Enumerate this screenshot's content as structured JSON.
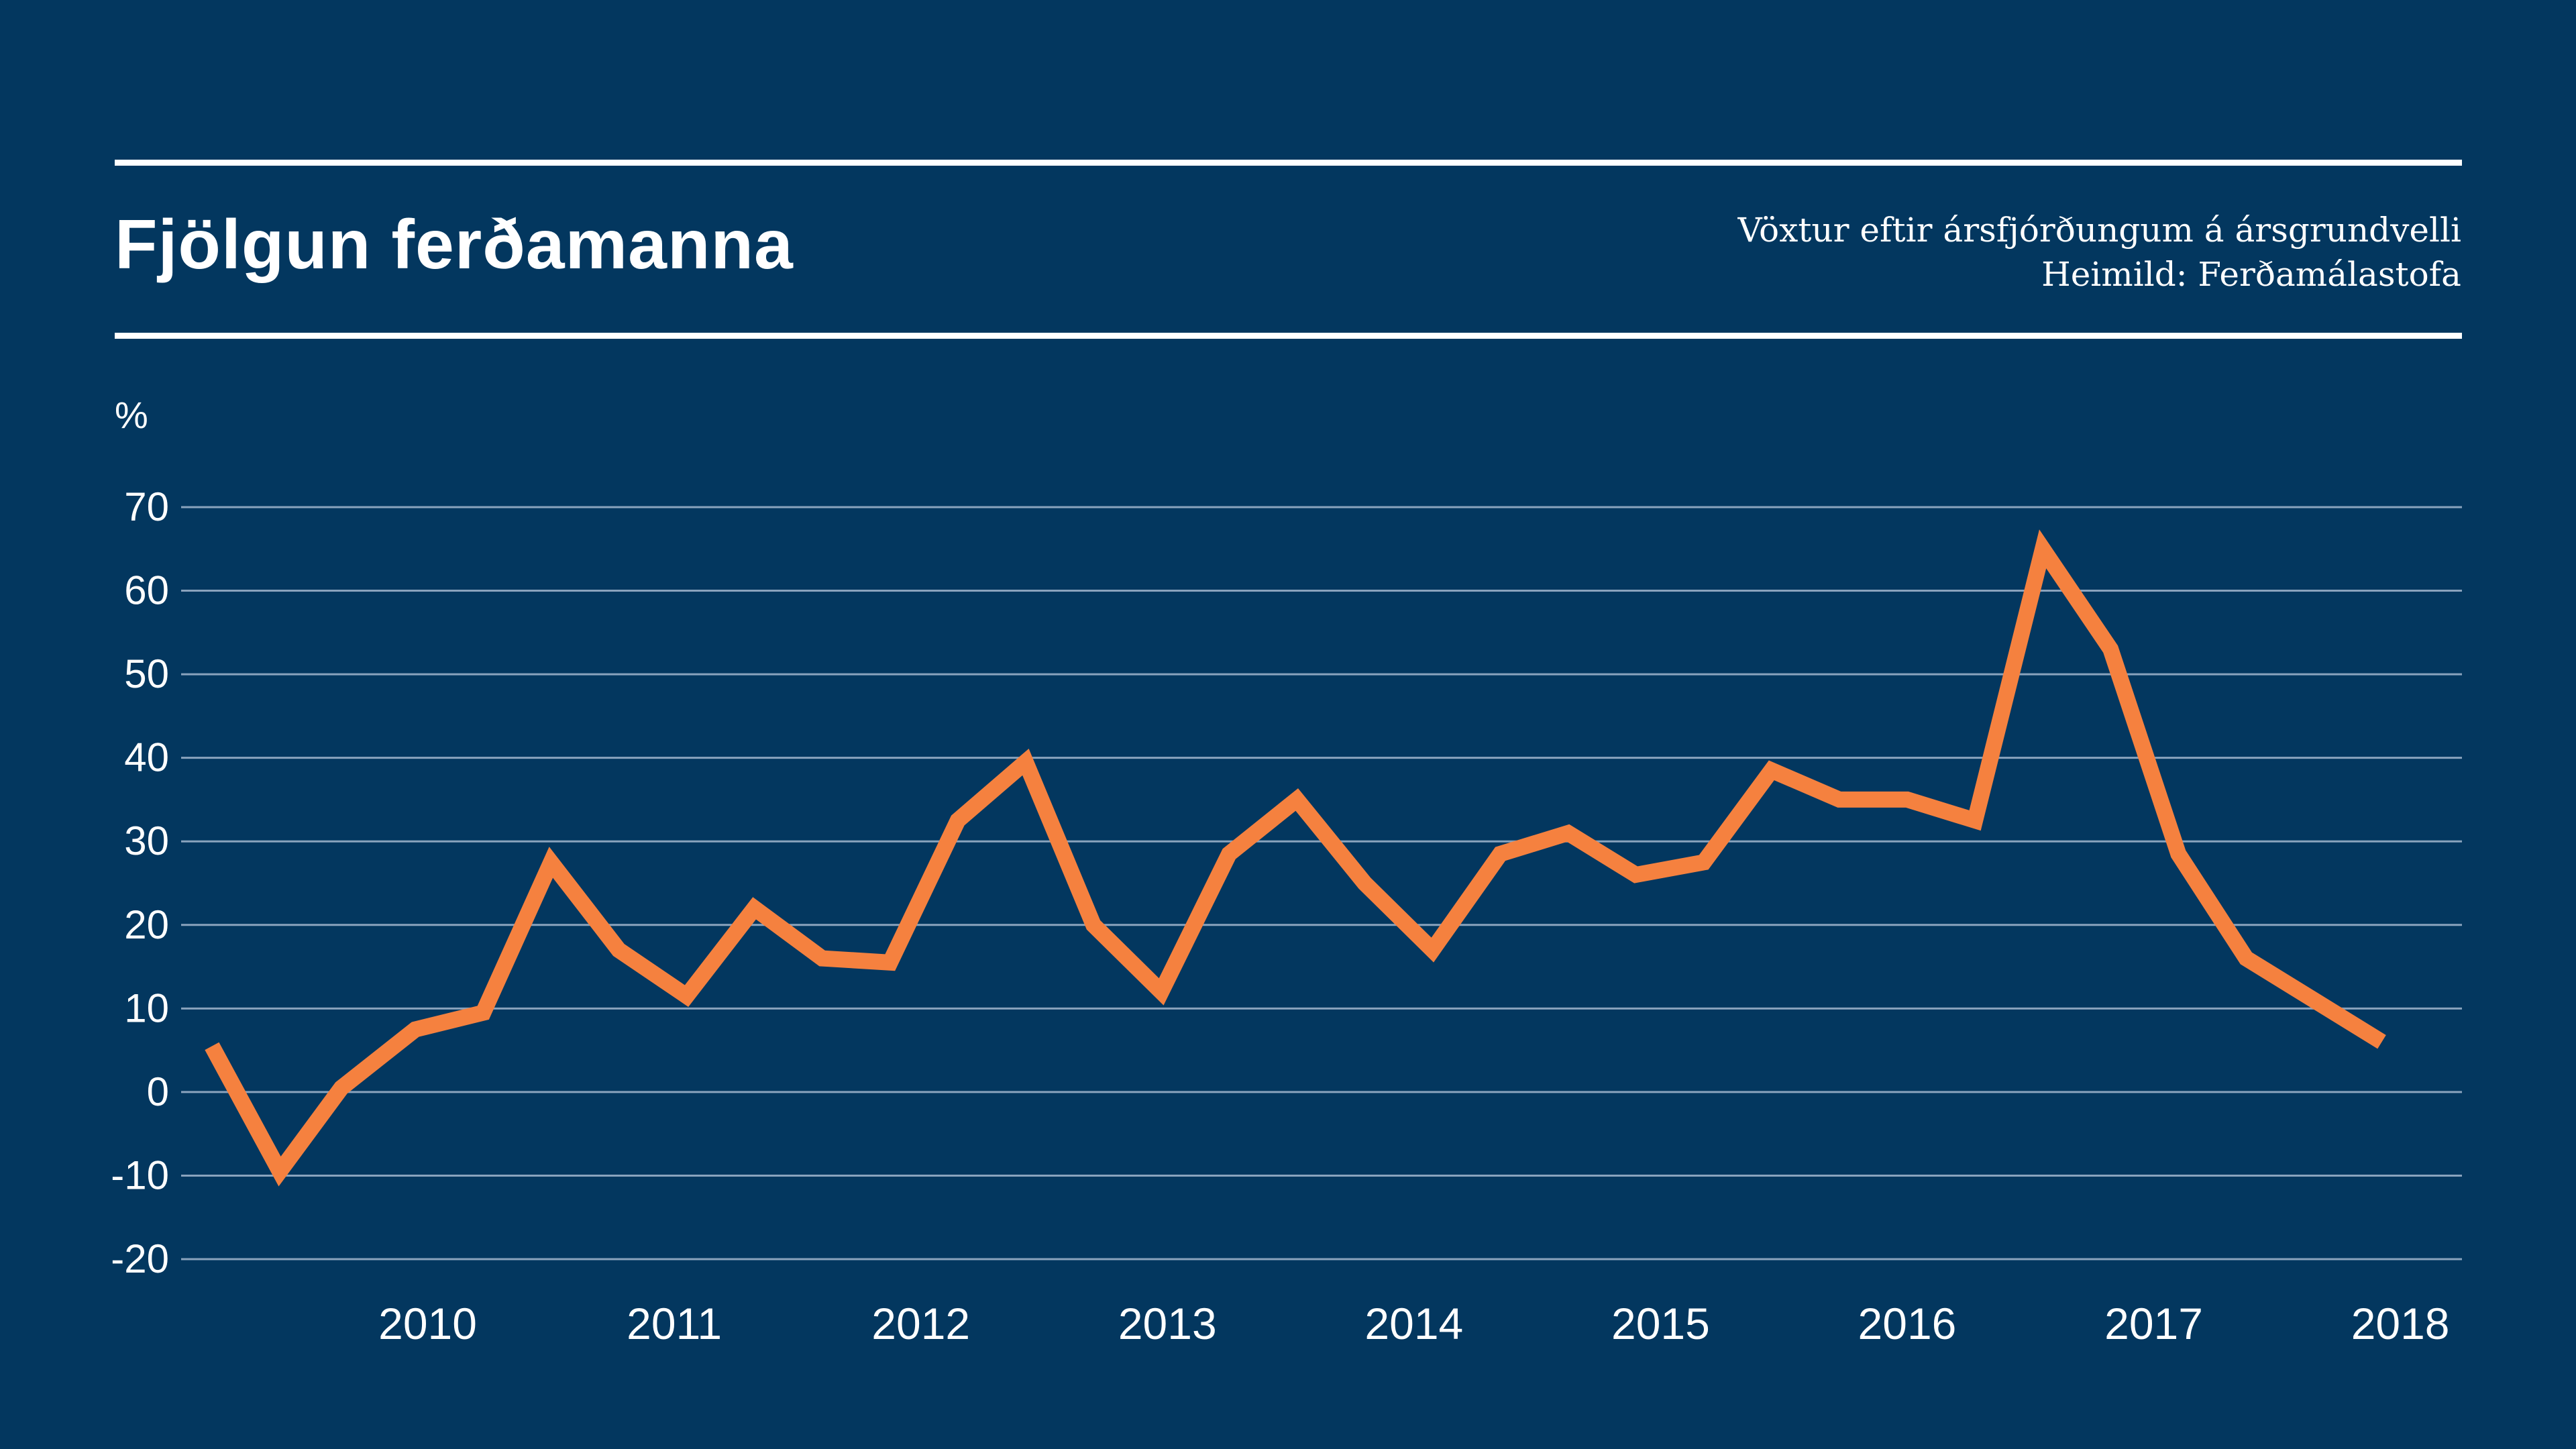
{
  "header": {
    "title": "Fjölgun ferðamanna",
    "subtitle_line1": "Vöxtur eftir ársfjórðungum á ársgrundvelli",
    "subtitle_line2": "Heimild: Ferðamálastofa"
  },
  "colors": {
    "background": "#03375f",
    "line": "#f5813f",
    "grid": "#8aa3bd",
    "text": "#ffffff"
  },
  "chart_data": {
    "type": "line",
    "ylabel": "%",
    "ylim": [
      -20,
      70
    ],
    "yticks": [
      "70",
      "60",
      "50",
      "40",
      "30",
      "20",
      "10",
      "0",
      "-10",
      "-20"
    ],
    "ytick_values": [
      70,
      60,
      50,
      40,
      30,
      20,
      10,
      0,
      -10,
      -20
    ],
    "xlabels": [
      "2010",
      "2011",
      "2012",
      "2013",
      "2014",
      "2015",
      "2016",
      "2017",
      "2018"
    ],
    "xlim": [
      2009.5,
      2018.75
    ],
    "grid": true,
    "series": [
      {
        "x": [
          2009.625,
          2009.9,
          2010.15,
          2010.45,
          2010.725,
          2011.0,
          2011.275,
          2011.55,
          2011.825,
          2012.1,
          2012.375,
          2012.65,
          2012.925,
          2013.2,
          2013.475,
          2013.75,
          2014.025,
          2014.3,
          2014.575,
          2014.85,
          2015.125,
          2015.4,
          2015.675,
          2015.95,
          2016.225,
          2016.5,
          2016.775,
          2017.05,
          2017.325,
          2017.6,
          2017.875,
          2018.15,
          2018.425
        ],
        "values": [
          5.5,
          -9.5,
          0.5,
          7.5,
          9.5,
          27.5,
          17.0,
          11.5,
          22.0,
          16.0,
          15.5,
          32.5,
          39.5,
          20.0,
          12.0,
          28.5,
          35.0,
          25.0,
          17.0,
          28.5,
          31.0,
          26.0,
          27.5,
          38.5,
          35.0,
          35.0,
          32.5,
          65.0,
          53.0,
          28.5,
          16.0,
          11.0,
          6.0
        ]
      }
    ]
  }
}
